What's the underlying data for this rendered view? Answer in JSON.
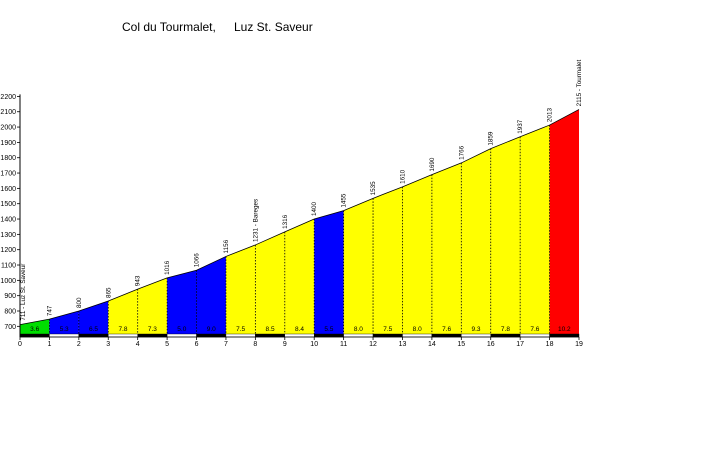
{
  "title": "Col du Tourmalet,",
  "start_location": "Luz St. Saveur",
  "chart_data": {
    "type": "area",
    "xlim": [
      0,
      19
    ],
    "ylim": [
      650,
      2200
    ],
    "y_ticks": [
      700,
      800,
      900,
      1000,
      1100,
      1200,
      1300,
      1400,
      1500,
      1600,
      1700,
      1800,
      1900,
      2000,
      2100,
      2200
    ],
    "x_ticks": [
      0,
      1,
      2,
      3,
      4,
      5,
      6,
      7,
      8,
      9,
      10,
      11,
      12,
      13,
      14,
      15,
      16,
      17,
      18,
      19
    ],
    "grid": false,
    "points": [
      {
        "km": 0,
        "elev": 711,
        "label": "711 - Luz St. Saveur"
      },
      {
        "km": 1,
        "elev": 747,
        "label": "747"
      },
      {
        "km": 2,
        "elev": 800,
        "label": "800"
      },
      {
        "km": 3,
        "elev": 865,
        "label": "865"
      },
      {
        "km": 4,
        "elev": 943,
        "label": "943"
      },
      {
        "km": 5,
        "elev": 1016,
        "label": "1016"
      },
      {
        "km": 6,
        "elev": 1066,
        "label": "1066"
      },
      {
        "km": 7,
        "elev": 1156,
        "label": "1156"
      },
      {
        "km": 8,
        "elev": 1231,
        "label": "1231 - Bareges"
      },
      {
        "km": 9,
        "elev": 1316,
        "label": "1316"
      },
      {
        "km": 10,
        "elev": 1400,
        "label": "1400"
      },
      {
        "km": 11,
        "elev": 1455,
        "label": "1455"
      },
      {
        "km": 12,
        "elev": 1535,
        "label": "1535"
      },
      {
        "km": 13,
        "elev": 1610,
        "label": "1610"
      },
      {
        "km": 14,
        "elev": 1690,
        "label": "1690"
      },
      {
        "km": 15,
        "elev": 1766,
        "label": "1766"
      },
      {
        "km": 16,
        "elev": 1859,
        "label": "1859"
      },
      {
        "km": 17,
        "elev": 1937,
        "label": "1937"
      },
      {
        "km": 18,
        "elev": 2013,
        "label": "2013"
      },
      {
        "km": 19,
        "elev": 2115,
        "label": "2115 - Tourmalet"
      }
    ],
    "segments": [
      {
        "gradient": "3.6",
        "color": "#00dd00"
      },
      {
        "gradient": "5.3",
        "color": "#0000ff"
      },
      {
        "gradient": "6.5",
        "color": "#0000ff"
      },
      {
        "gradient": "7.8",
        "color": "#ffff00"
      },
      {
        "gradient": "7.3",
        "color": "#ffff00"
      },
      {
        "gradient": "5.0",
        "color": "#0000ff"
      },
      {
        "gradient": "9.0",
        "color": "#0000ff"
      },
      {
        "gradient": "7.5",
        "color": "#ffff00"
      },
      {
        "gradient": "8.5",
        "color": "#ffff00"
      },
      {
        "gradient": "8.4",
        "color": "#ffff00"
      },
      {
        "gradient": "5.5",
        "color": "#0000ff"
      },
      {
        "gradient": "8.0",
        "color": "#ffff00"
      },
      {
        "gradient": "7.5",
        "color": "#ffff00"
      },
      {
        "gradient": "8.0",
        "color": "#ffff00"
      },
      {
        "gradient": "7.6",
        "color": "#ffff00"
      },
      {
        "gradient": "9.3",
        "color": "#ffff00"
      },
      {
        "gradient": "7.8",
        "color": "#ffff00"
      },
      {
        "gradient": "7.6",
        "color": "#ffff00"
      },
      {
        "gradient": "10.2",
        "color": "#ff0000"
      }
    ]
  }
}
